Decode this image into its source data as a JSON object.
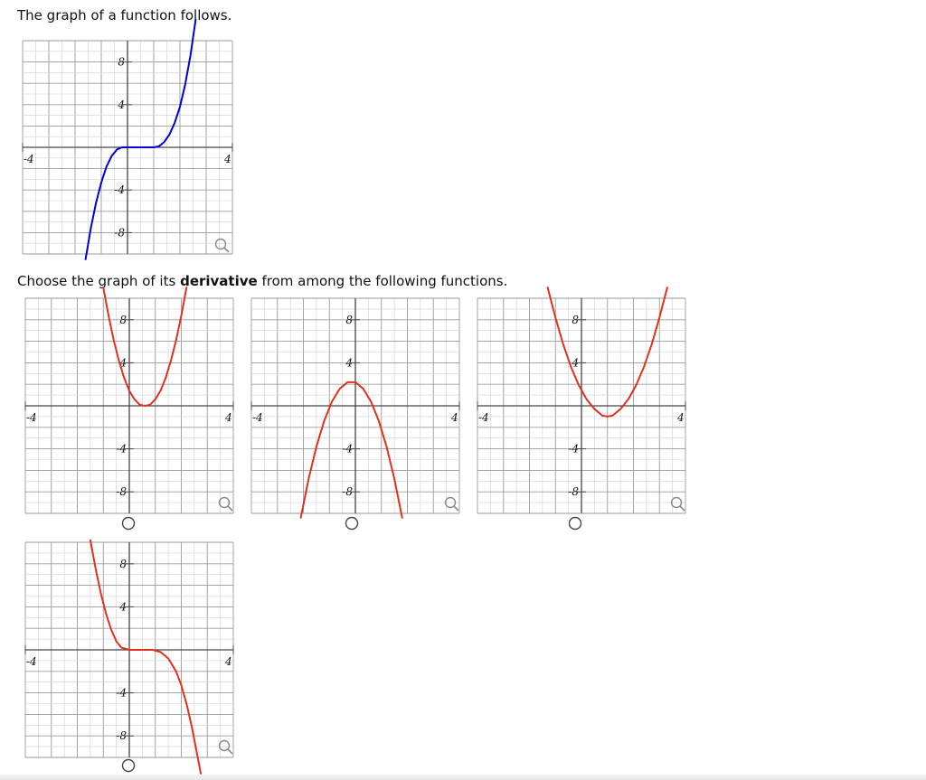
{
  "prompt": {
    "line1": "The graph of a function follows.",
    "line2_before": "Choose the graph of its ",
    "line2_bold": "derivative",
    "line2_after": " from among the following functions."
  },
  "colors": {
    "original_curve": "#0000dd",
    "option_curve": "#e0301e",
    "grid_minor": "#cfcfcf",
    "grid_major": "#9a9a9a",
    "axis": "#444444"
  },
  "icons": {
    "zoom": "magnifier-icon",
    "choice": "radio-circle-icon"
  },
  "graphs": {
    "original": {
      "xlim": [
        -4,
        4
      ],
      "ylim": [
        -10,
        10
      ],
      "ticks": {
        "x_left": "-4",
        "x_right": "4",
        "y_p8": "8",
        "y_p4": "4",
        "y_m4": "-4",
        "y_m8": "-8"
      },
      "curve_points": [
        [
          -1.6,
          -10.5
        ],
        [
          -1.4,
          -7.6
        ],
        [
          -1.2,
          -5.2
        ],
        [
          -1.0,
          -3.3
        ],
        [
          -0.8,
          -1.8
        ],
        [
          -0.6,
          -0.8
        ],
        [
          -0.4,
          -0.2
        ],
        [
          -0.2,
          0.0
        ],
        [
          0.0,
          0.0
        ],
        [
          0.2,
          0.0
        ],
        [
          0.4,
          0.0
        ],
        [
          0.6,
          0.0
        ],
        [
          0.8,
          0.0
        ],
        [
          1.0,
          0.0
        ],
        [
          1.2,
          0.1
        ],
        [
          1.4,
          0.5
        ],
        [
          1.6,
          1.2
        ],
        [
          1.8,
          2.3
        ],
        [
          2.0,
          3.8
        ],
        [
          2.2,
          5.9
        ],
        [
          2.4,
          8.6
        ],
        [
          2.6,
          12.0
        ]
      ]
    },
    "option_a": {
      "xlim": [
        -4,
        4
      ],
      "ylim": [
        -10,
        10
      ],
      "ticks": {
        "x_left": "-4",
        "x_right": "4",
        "y_p8": "8",
        "y_p4": "4",
        "y_m4": "-4",
        "y_m8": "-8"
      },
      "curve_points": [
        [
          -1.0,
          11.0
        ],
        [
          -0.8,
          8.4
        ],
        [
          -0.6,
          6.1
        ],
        [
          -0.4,
          4.2
        ],
        [
          -0.2,
          2.6
        ],
        [
          0.0,
          1.4
        ],
        [
          0.2,
          0.6
        ],
        [
          0.4,
          0.1
        ],
        [
          0.6,
          0.0
        ],
        [
          0.8,
          0.1
        ],
        [
          1.0,
          0.6
        ],
        [
          1.2,
          1.4
        ],
        [
          1.4,
          2.6
        ],
        [
          1.6,
          4.2
        ],
        [
          1.8,
          6.1
        ],
        [
          2.0,
          8.4
        ],
        [
          2.2,
          11.0
        ]
      ]
    },
    "option_b": {
      "xlim": [
        -4,
        4
      ],
      "ylim": [
        -10,
        10
      ],
      "ticks": {
        "x_left": "-4",
        "x_right": "4",
        "y_p8": "8",
        "y_p4": "4",
        "y_m4": "-4",
        "y_m8": "-8"
      },
      "curve_points": [
        [
          -2.1,
          -10.4
        ],
        [
          -1.8,
          -6.8
        ],
        [
          -1.5,
          -3.8
        ],
        [
          -1.2,
          -1.4
        ],
        [
          -0.9,
          0.4
        ],
        [
          -0.6,
          1.6
        ],
        [
          -0.3,
          2.2
        ],
        [
          0.0,
          2.2
        ],
        [
          0.3,
          1.6
        ],
        [
          0.6,
          0.4
        ],
        [
          0.9,
          -1.4
        ],
        [
          1.2,
          -3.8
        ],
        [
          1.5,
          -6.8
        ],
        [
          1.8,
          -10.4
        ]
      ]
    },
    "option_c": {
      "xlim": [
        -4,
        4
      ],
      "ylim": [
        -10,
        10
      ],
      "ticks": {
        "x_left": "-4",
        "x_right": "4",
        "y_p8": "8",
        "y_p4": "4",
        "y_m4": "-4",
        "y_m8": "-8"
      },
      "curve_points": [
        [
          -1.3,
          11.0
        ],
        [
          -1.0,
          8.2
        ],
        [
          -0.7,
          5.7
        ],
        [
          -0.4,
          3.6
        ],
        [
          -0.1,
          1.9
        ],
        [
          0.2,
          0.6
        ],
        [
          0.5,
          -0.3
        ],
        [
          0.8,
          -0.9
        ],
        [
          1.0,
          -1.0
        ],
        [
          1.2,
          -0.9
        ],
        [
          1.5,
          -0.3
        ],
        [
          1.8,
          0.6
        ],
        [
          2.1,
          1.9
        ],
        [
          2.4,
          3.6
        ],
        [
          2.7,
          5.7
        ],
        [
          3.0,
          8.2
        ],
        [
          3.3,
          11.0
        ]
      ]
    },
    "option_d": {
      "xlim": [
        -4,
        4
      ],
      "ylim": [
        -10,
        10
      ],
      "ticks": {
        "x_left": "-4",
        "x_right": "4",
        "y_p8": "8",
        "y_p4": "4",
        "y_m4": "-4",
        "y_m8": "-8"
      },
      "curve_points": [
        [
          -1.5,
          10.2
        ],
        [
          -1.3,
          7.6
        ],
        [
          -1.1,
          5.3
        ],
        [
          -0.9,
          3.4
        ],
        [
          -0.7,
          1.9
        ],
        [
          -0.5,
          0.8
        ],
        [
          -0.3,
          0.2
        ],
        [
          0.0,
          0.0
        ],
        [
          0.3,
          0.0
        ],
        [
          0.6,
          0.0
        ],
        [
          0.9,
          0.0
        ],
        [
          1.2,
          -0.2
        ],
        [
          1.5,
          -0.8
        ],
        [
          1.8,
          -2.0
        ],
        [
          2.0,
          -3.3
        ],
        [
          2.2,
          -5.0
        ],
        [
          2.4,
          -7.1
        ],
        [
          2.6,
          -9.6
        ],
        [
          2.75,
          -11.5
        ]
      ]
    }
  }
}
